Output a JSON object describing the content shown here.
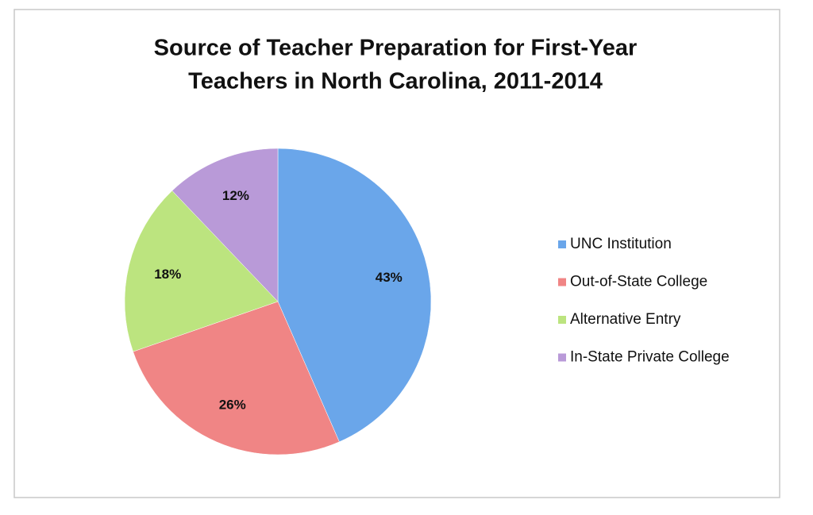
{
  "chart_data": {
    "type": "pie",
    "title": [
      "Source of Teacher Preparation for First-Year",
      "Teachers in North Carolina, 2011-2014"
    ],
    "categories": [
      "UNC Institution",
      "Out-of-State College",
      "Alternative Entry",
      "In-State Private College"
    ],
    "values": [
      43,
      26,
      18,
      12
    ],
    "value_labels": [
      "43%",
      "26%",
      "18%",
      "12%"
    ],
    "colors": [
      "#6aa6ea",
      "#f08585",
      "#bce47f",
      "#b99ad8"
    ]
  }
}
